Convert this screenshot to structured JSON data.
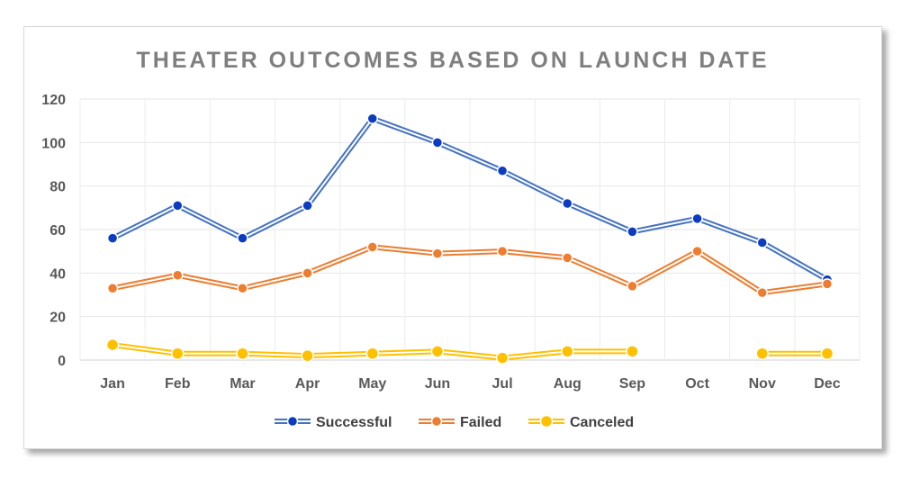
{
  "chart_data": {
    "type": "line",
    "title": "THEATER OUTCOMES BASED ON LAUNCH DATE",
    "xlabel": "",
    "ylabel": "",
    "categories": [
      "Jan",
      "Feb",
      "Mar",
      "Apr",
      "May",
      "Jun",
      "Jul",
      "Aug",
      "Sep",
      "Oct",
      "Nov",
      "Dec"
    ],
    "ylim": [
      0,
      120
    ],
    "yticks": [
      0,
      20,
      40,
      60,
      80,
      100,
      120
    ],
    "grid": true,
    "legend_position": "bottom",
    "series": [
      {
        "name": "Successful",
        "color": "#4472C4",
        "marker_color": "#0B3CC1",
        "values": [
          56,
          71,
          56,
          71,
          111,
          100,
          87,
          72,
          59,
          65,
          54,
          37
        ]
      },
      {
        "name": "Failed",
        "color": "#ED7D31",
        "marker_color": "#ED7D31",
        "values": [
          33,
          39,
          33,
          40,
          52,
          49,
          50,
          47,
          34,
          50,
          31,
          35
        ]
      },
      {
        "name": "Canceled",
        "color": "#FFC000",
        "marker_color": "#FFC000",
        "values": [
          7,
          3,
          3,
          2,
          3,
          4,
          1,
          4,
          4,
          null,
          3,
          3
        ]
      }
    ]
  }
}
